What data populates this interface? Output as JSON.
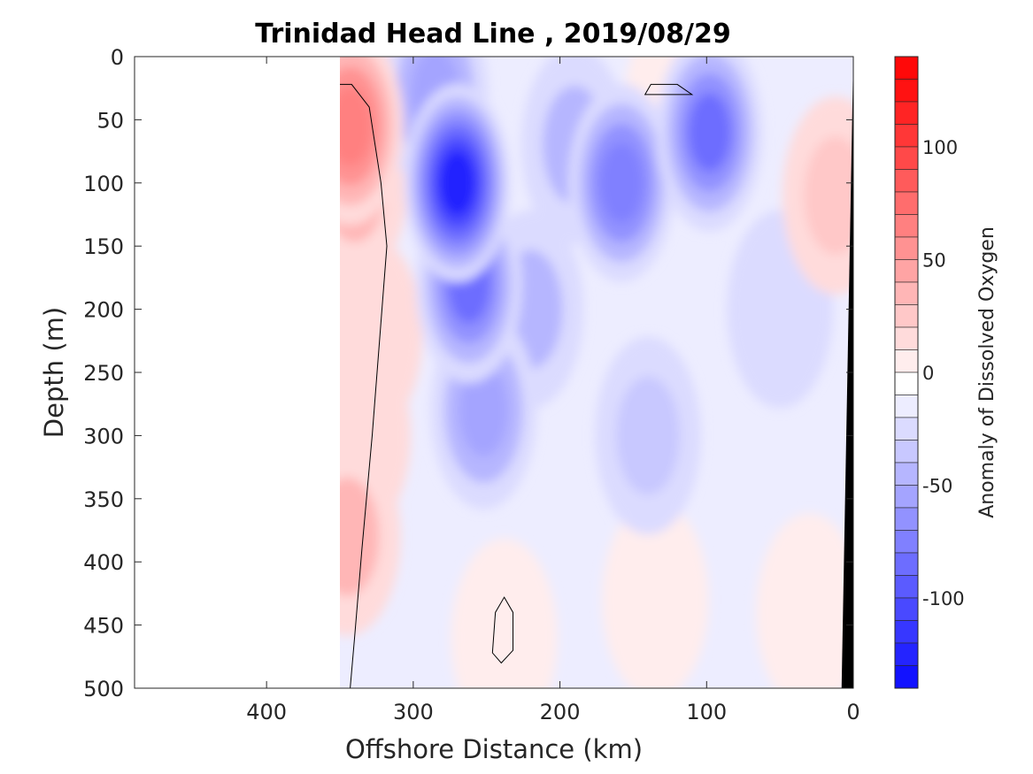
{
  "chart_data": {
    "type": "heatmap",
    "title": "Trinidad Head Line , 2019/08/29",
    "xlabel": "Offshore Distance (km)",
    "ylabel": "Depth (m)",
    "xlim": [
      490,
      0
    ],
    "ylim": [
      0,
      500
    ],
    "x_reversed": true,
    "y_reversed": true,
    "x_ticks": [
      400,
      300,
      200,
      100,
      0
    ],
    "y_ticks": [
      0,
      50,
      100,
      150,
      200,
      250,
      300,
      350,
      400,
      450,
      500
    ],
    "grid": false,
    "colorbar": {
      "label": "Anomaly of Dissolved Oxygen",
      "range": [
        -140,
        140
      ],
      "levels_step": 10,
      "ticks": [
        100,
        50,
        0,
        -50,
        -100
      ],
      "min_color": "#0000ff",
      "mid_color": "#ffffff",
      "max_color": "#ff0000"
    },
    "zero_contour_color": "#000000",
    "bathymetry_color": "#000000",
    "data_extent_km": [
      0,
      350
    ],
    "features": [
      {
        "x": 270,
        "y": 100,
        "value": -120
      },
      {
        "x": 262,
        "y": 180,
        "value": -85
      },
      {
        "x": 252,
        "y": 280,
        "value": -50
      },
      {
        "x": 285,
        "y": 30,
        "value": -55
      },
      {
        "x": 98,
        "y": 60,
        "value": -80
      },
      {
        "x": 158,
        "y": 100,
        "value": -70
      },
      {
        "x": 220,
        "y": 200,
        "value": -40
      },
      {
        "x": 190,
        "y": 70,
        "value": -45
      },
      {
        "x": 140,
        "y": 300,
        "value": -30
      },
      {
        "x": 50,
        "y": 200,
        "value": -25
      },
      {
        "x": 120,
        "y": 40,
        "value": 8
      },
      {
        "x": 238,
        "y": 460,
        "value": 10
      },
      {
        "x": 135,
        "y": 430,
        "value": 8
      },
      {
        "x": 30,
        "y": 440,
        "value": 8
      },
      {
        "x": 343,
        "y": 55,
        "value": 70
      },
      {
        "x": 340,
        "y": 100,
        "value": 45
      },
      {
        "x": 345,
        "y": 380,
        "value": 40
      },
      {
        "x": 330,
        "y": 220,
        "value": 25
      },
      {
        "x": 338,
        "y": 300,
        "value": 25
      },
      {
        "x": 12,
        "y": 110,
        "value": 30
      }
    ]
  }
}
